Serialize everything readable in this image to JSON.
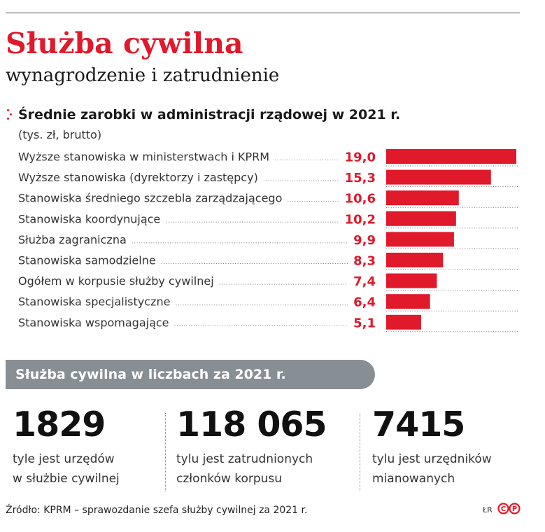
{
  "header": {
    "title": "Służba cywilna",
    "subtitle": "wynagrodzenie i zatrudnienie"
  },
  "chart_data": {
    "type": "bar",
    "orientation": "horizontal",
    "title": "Średnie zarobki w administracji rządowej w 2021 r.",
    "unit": "(tys. zł, brutto)",
    "categories": [
      "Wyższe stanowiska w ministerstwach i KPRM",
      "Wyższe stanowiska (dyrektorzy i zastępcy)",
      "Stanowiska średniego szczebla zarządzającego",
      "Stanowiska koordynujące",
      "Służba zagraniczna",
      "Stanowiska samodzielne",
      "Ogółem w korpusie służby cywilnej",
      "Stanowiska specjalistyczne",
      "Stanowiska wspomagające"
    ],
    "values": [
      19.0,
      15.3,
      10.6,
      10.2,
      9.9,
      8.3,
      7.4,
      6.4,
      5.1
    ],
    "value_labels": [
      "19,0",
      "15,3",
      "10,6",
      "10,2",
      "9,9",
      "8,3",
      "7,4",
      "6,4",
      "5,1"
    ],
    "xlim": [
      0,
      19.0
    ],
    "bar_color": "#e0192b",
    "grid": false
  },
  "stats": {
    "banner": "Służba cywilna w liczbach za 2021 r.",
    "items": [
      {
        "number": "1829",
        "description": "tyle jest urzędów\nw służbie cywilnej"
      },
      {
        "number": "118 065",
        "description": "tylu jest zatrudnionych\nczłonków korpusu"
      },
      {
        "number": "7415",
        "description": "tylu jest urzędników\nmianowanych"
      }
    ]
  },
  "footer": {
    "source": "Źródło: KPRM – sprawozdanie szefa służby cywilnej za 2021 r.",
    "credit": "ŁR",
    "logo_letters": [
      "C",
      "P"
    ]
  },
  "colors": {
    "accent": "#e0192b",
    "banner": "#878e94",
    "text": "#1a1a1a"
  }
}
